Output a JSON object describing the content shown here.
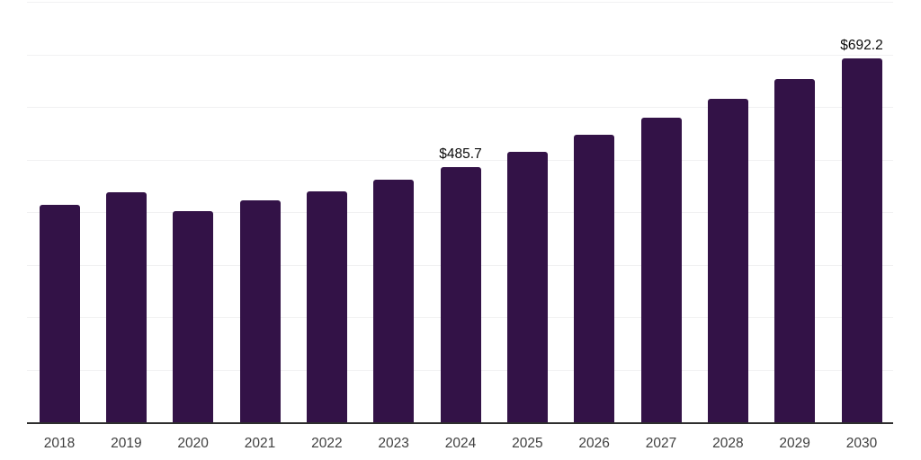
{
  "chart_data": {
    "type": "bar",
    "title": "",
    "xlabel": "",
    "ylabel": "",
    "categories": [
      "2018",
      "2019",
      "2020",
      "2021",
      "2022",
      "2023",
      "2024",
      "2025",
      "2026",
      "2027",
      "2028",
      "2029",
      "2030"
    ],
    "values": [
      413.8,
      437.5,
      401.5,
      422.1,
      439.4,
      461.5,
      485.7,
      515.2,
      546.5,
      579.7,
      615.0,
      652.4,
      692.2
    ],
    "data_labels": {
      "2024": "$485.7",
      "2030": "$692.2"
    },
    "ylim": [
      0,
      800
    ],
    "gridline_step": 100,
    "grid": true,
    "legend": "none",
    "colors": {
      "bar": "#331247",
      "axis_line": "#2e2e2e",
      "gridline": "#f1f1f2",
      "tick_label": "#3f3f3f",
      "data_label": "#0a0a0a",
      "background": "#ffffff"
    }
  }
}
